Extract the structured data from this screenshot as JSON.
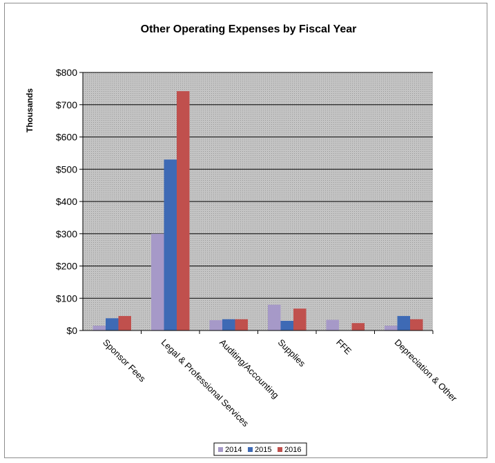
{
  "chart_data": {
    "type": "bar",
    "title": "Other Operating Expenses by Fiscal Year",
    "ylabel": "Thousands",
    "xlabel": "",
    "ylim": [
      0,
      800
    ],
    "yticks": [
      0,
      100,
      200,
      300,
      400,
      500,
      600,
      700,
      800
    ],
    "ytick_labels": [
      "$0",
      "$100",
      "$200",
      "$300",
      "$400",
      "$500",
      "$600",
      "$700",
      "$800"
    ],
    "grid": true,
    "legend_position": "bottom",
    "categories": [
      "Sponsor Fees",
      "Legal & Professional Services",
      "Auditing/Accounting",
      "Supplies",
      "FFE",
      "Depreciation & Other"
    ],
    "series": [
      {
        "name": "2014",
        "color": "#a699c8",
        "values": [
          15,
          300,
          32,
          80,
          33,
          15
        ]
      },
      {
        "name": "2015",
        "color": "#3e6ab5",
        "values": [
          38,
          530,
          35,
          30,
          0,
          45
        ]
      },
      {
        "name": "2016",
        "color": "#c0504d",
        "values": [
          45,
          742,
          35,
          68,
          23,
          35
        ]
      }
    ],
    "plot_background": "#c0c0c0"
  }
}
